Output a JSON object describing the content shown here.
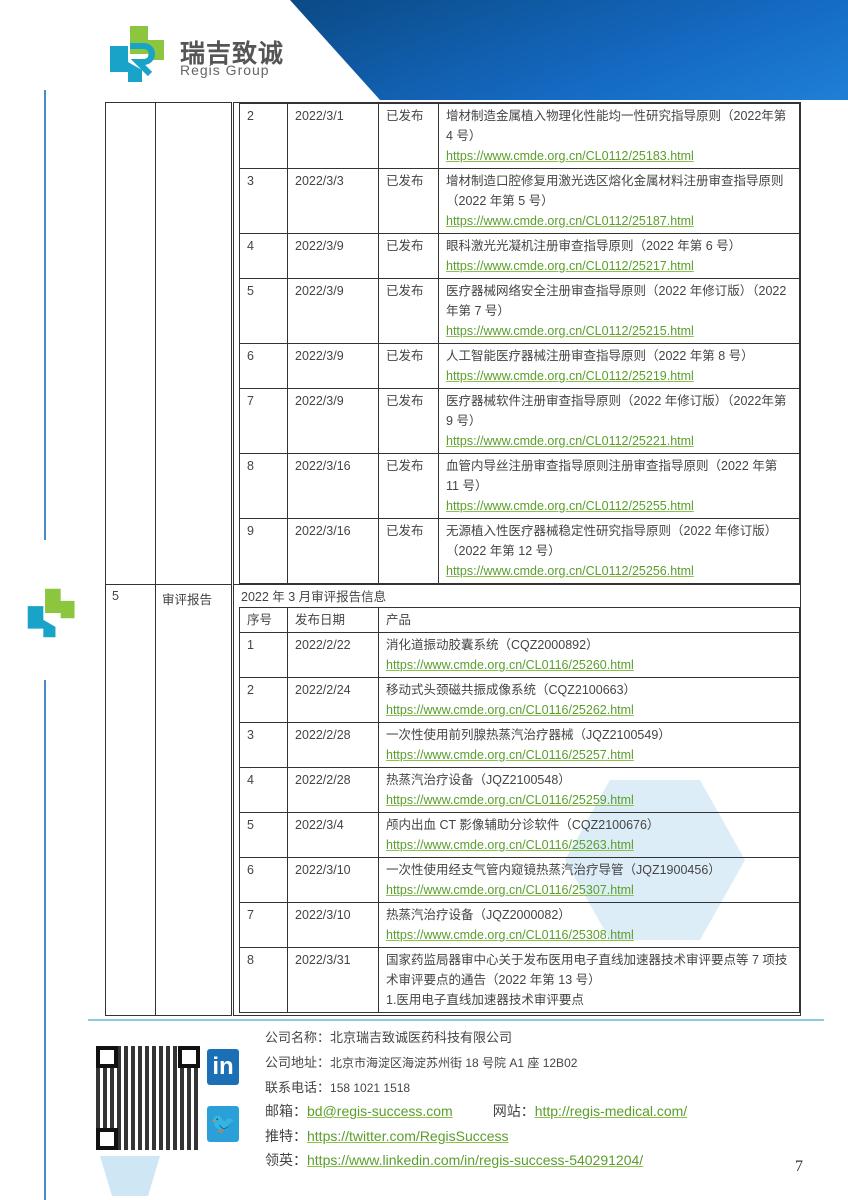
{
  "header": {
    "logo_cn": "瑞吉致诚",
    "logo_en": "Regis Group"
  },
  "guidelines": {
    "rows": [
      {
        "no": "2",
        "date": "2022/3/1",
        "status": "已发布",
        "title": "增材制造金属植入物理化性能均一性研究指导原则（2022年第 4 号）",
        "url": "https://www.cmde.org.cn/CL0112/25183.html"
      },
      {
        "no": "3",
        "date": "2022/3/3",
        "status": "已发布",
        "title": "增材制造口腔修复用激光选区熔化金属材料注册审查指导原则（2022 年第 5 号）",
        "url": "https://www.cmde.org.cn/CL0112/25187.html"
      },
      {
        "no": "4",
        "date": "2022/3/9",
        "status": "已发布",
        "title": "眼科激光光凝机注册审查指导原则（2022 年第 6 号）",
        "url": "https://www.cmde.org.cn/CL0112/25217.html"
      },
      {
        "no": "5",
        "date": "2022/3/9",
        "status": "已发布",
        "title": "医疗器械网络安全注册审查指导原则（2022 年修订版）（2022 年第 7 号）",
        "url": "https://www.cmde.org.cn/CL0112/25215.html"
      },
      {
        "no": "6",
        "date": "2022/3/9",
        "status": "已发布",
        "title": "人工智能医疗器械注册审查指导原则（2022 年第 8 号）",
        "url": "https://www.cmde.org.cn/CL0112/25219.html"
      },
      {
        "no": "7",
        "date": "2022/3/9",
        "status": "已发布",
        "title": "医疗器械软件注册审查指导原则（2022 年修订版）（2022年第 9 号）",
        "url": "https://www.cmde.org.cn/CL0112/25221.html"
      },
      {
        "no": "8",
        "date": "2022/3/16",
        "status": "已发布",
        "title": "血管内导丝注册审查指导原则注册审查指导原则（2022 年第 11 号）",
        "url": "https://www.cmde.org.cn/CL0112/25255.html"
      },
      {
        "no": "9",
        "date": "2022/3/16",
        "status": "已发布",
        "title": "无源植入性医疗器械稳定性研究指导原则（2022 年修订版）（2022 年第 12 号）",
        "url": "https://www.cmde.org.cn/CL0112/25256.html"
      }
    ]
  },
  "review": {
    "no": "5",
    "category": "审评报告",
    "subtitle": "2022 年 3 月审评报告信息",
    "headers": [
      "序号",
      "发布日期",
      "产品"
    ],
    "rows": [
      {
        "no": "1",
        "date": "2022/2/22",
        "title": "消化道振动胶囊系统（CQZ2000892）",
        "url": "https://www.cmde.org.cn/CL0116/25260.html"
      },
      {
        "no": "2",
        "date": "2022/2/24",
        "title": "移动式头颈磁共振成像系统（CQZ2100663）",
        "url": "https://www.cmde.org.cn/CL0116/25262.html"
      },
      {
        "no": "3",
        "date": "2022/2/28",
        "title": "一次性使用前列腺热蒸汽治疗器械（JQZ2100549）",
        "url": "https://www.cmde.org.cn/CL0116/25257.html"
      },
      {
        "no": "4",
        "date": "2022/2/28",
        "title": "热蒸汽治疗设备（JQZ2100548）",
        "url": "https://www.cmde.org.cn/CL0116/25259.html"
      },
      {
        "no": "5",
        "date": "2022/3/4",
        "title": "颅内出血 CT 影像辅助分诊软件（CQZ2100676）",
        "url": "https://www.cmde.org.cn/CL0116/25263.html"
      },
      {
        "no": "6",
        "date": "2022/3/10",
        "title": "一次性使用经支气管内窥镜热蒸汽治疗导管（JQZ1900456）",
        "url": "https://www.cmde.org.cn/CL0116/25307.html"
      },
      {
        "no": "7",
        "date": "2022/3/10",
        "title": "热蒸汽治疗设备（JQZ2000082）",
        "url": "https://www.cmde.org.cn/CL0116/25308.html"
      },
      {
        "no": "8",
        "date": "2022/3/31",
        "title": "国家药监局器审中心关于发布医用电子直线加速器技术审评要点等 7 项技术审评要点的通告（2022 年第 13 号）",
        "extra": "1.医用电子直线加速器技术审评要点"
      }
    ]
  },
  "footer": {
    "company_label": "公司名称：",
    "company": "北京瑞吉致诚医药科技有限公司",
    "address_label": "公司地址：",
    "address": "北京市海淀区海淀苏州街 18 号院 A1 座 12B02",
    "phone_label": "联系电话：",
    "phone": "158 1021 1518",
    "email_label": "邮箱：",
    "email": "bd@regis-success.com",
    "website_label": "网站：",
    "website": "http://regis-medical.com/",
    "twitter_label": "推特：",
    "twitter": "https://twitter.com/RegisSuccess",
    "linkedin_label": "领英：",
    "linkedin": "https://www.linkedin.com/in/regis-success-540291204/",
    "linkedin_icon": "in",
    "page_number": "7"
  },
  "colors": {
    "link": "#5a9e2c",
    "banner": "#1468c0",
    "logo_green": "#8cc63f",
    "logo_blue": "#1aa3c8"
  }
}
